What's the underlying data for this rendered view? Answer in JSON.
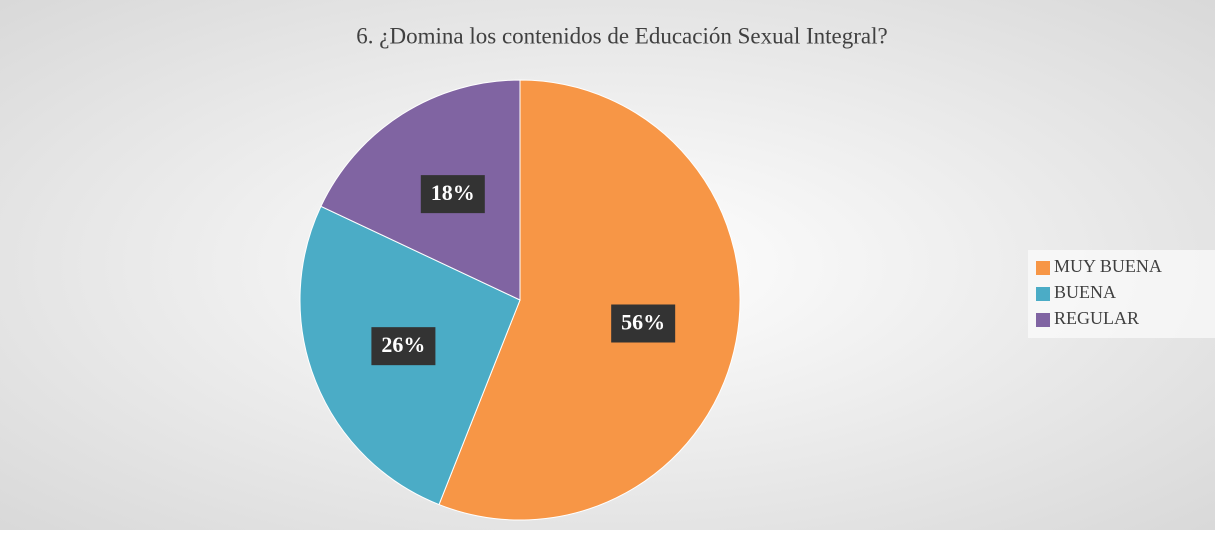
{
  "chart_data": {
    "type": "pie",
    "title": "6. ¿Domina los contenidos de Educación Sexual Integral?",
    "categories": [
      "MUY BUENA",
      "BUENA",
      "REGULAR"
    ],
    "values": [
      56,
      26,
      18
    ],
    "value_labels": [
      "56%",
      "26%",
      "18%"
    ],
    "colors": [
      "#f79646",
      "#4bacc6",
      "#8064a2"
    ],
    "legend": "right"
  }
}
